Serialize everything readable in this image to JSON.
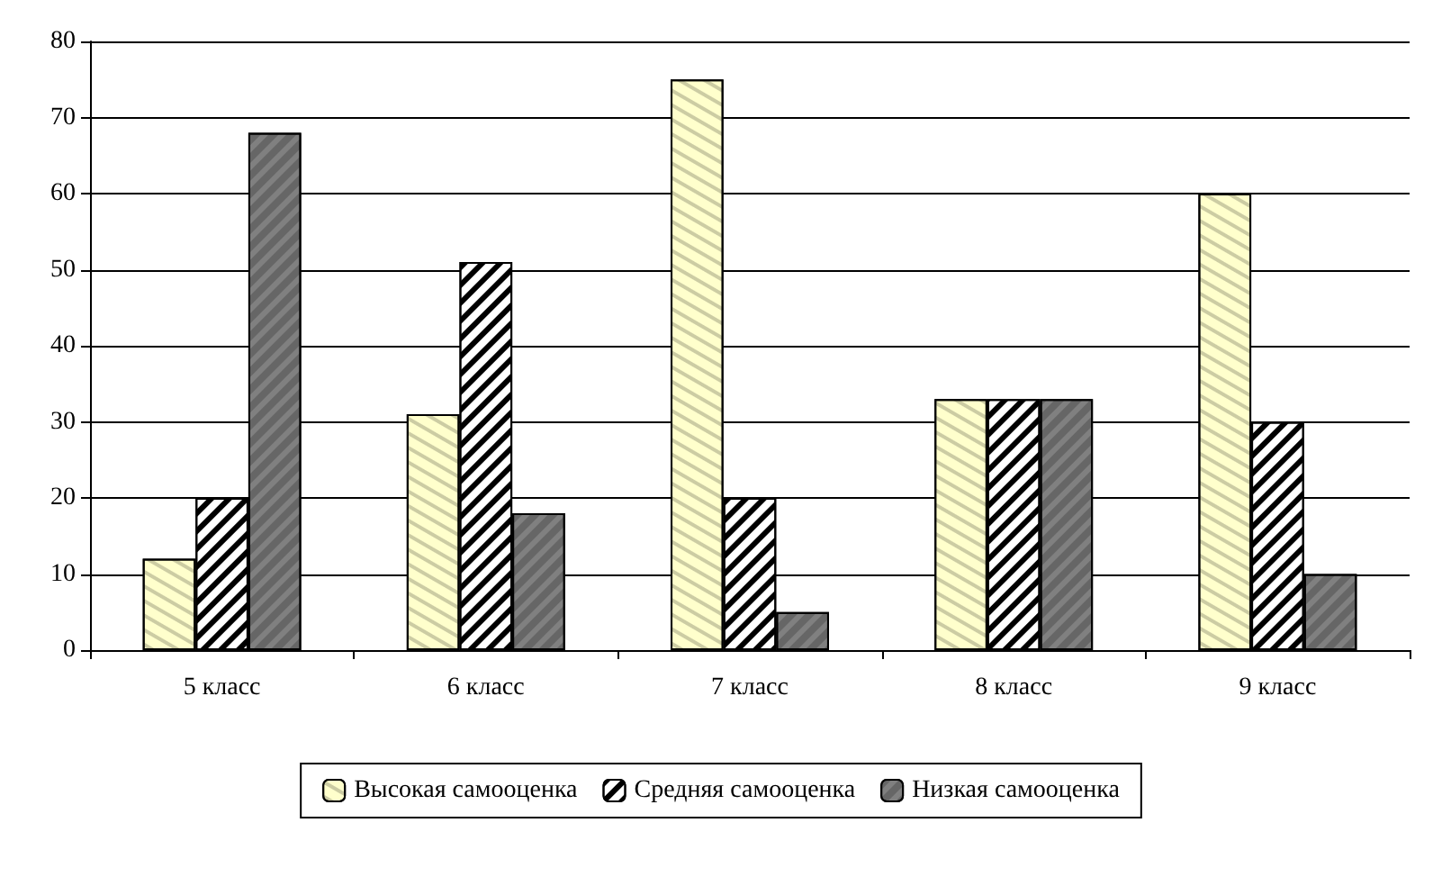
{
  "chart_data": {
    "type": "bar",
    "categories": [
      "5 класс",
      "6 класс",
      "7 класс",
      "8 класс",
      "9 класс"
    ],
    "series": [
      {
        "name": "Высокая самооценка",
        "color": "#ffffcc",
        "values": [
          12,
          31,
          75,
          33,
          60
        ]
      },
      {
        "name": "Средняя самооценка",
        "color": "#ffffff",
        "values": [
          20,
          51,
          20,
          33,
          30
        ]
      },
      {
        "name": "Низкая самооценка",
        "color": "#808080",
        "values": [
          68,
          18,
          5,
          33,
          10
        ]
      }
    ],
    "ylim": [
      0,
      80
    ],
    "yticks": [
      0,
      10,
      20,
      30,
      40,
      50,
      60,
      70,
      80
    ],
    "grid": "y",
    "legend": "bottom"
  }
}
